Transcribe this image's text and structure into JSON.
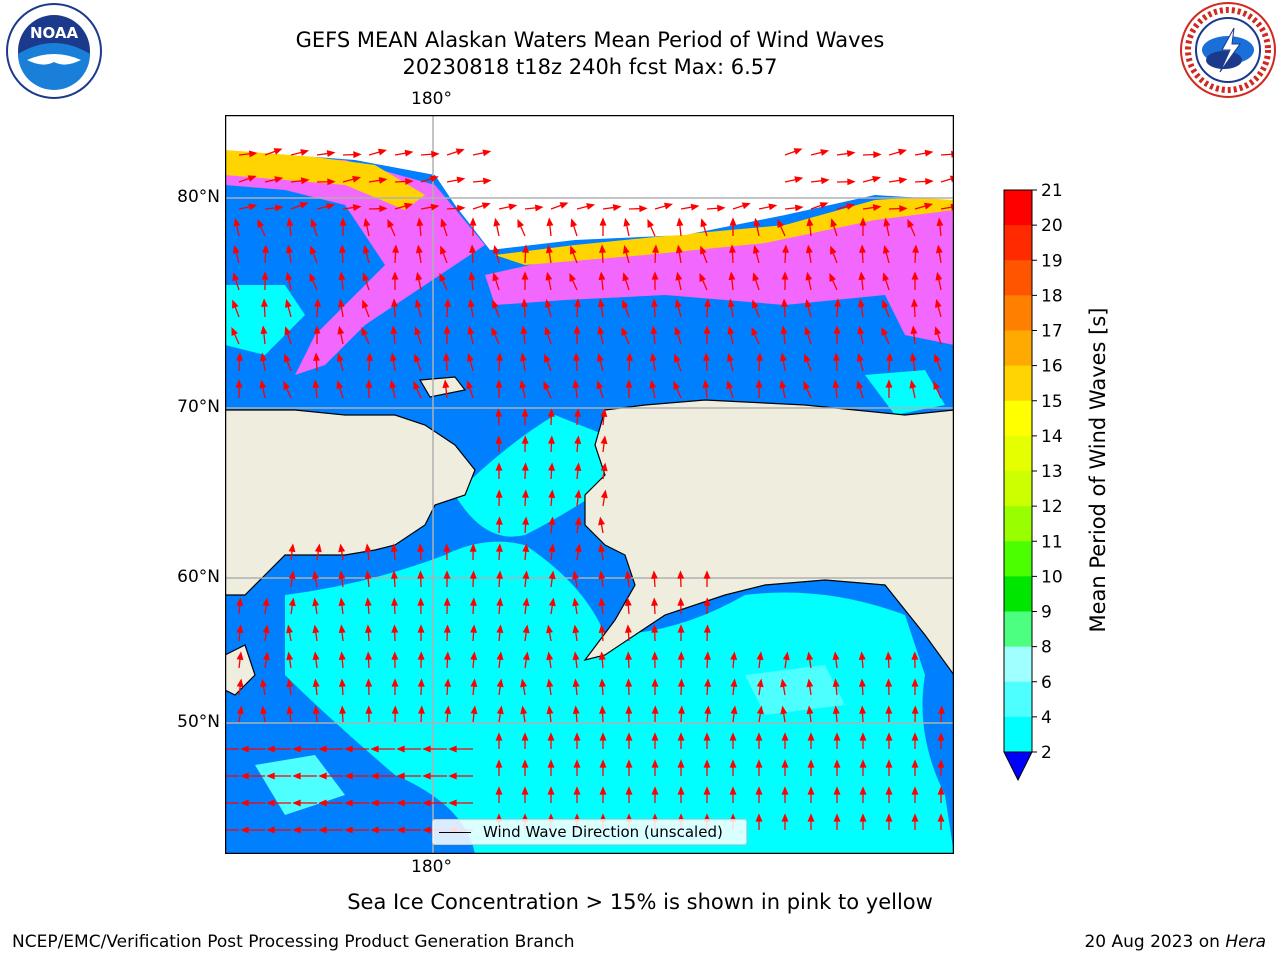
{
  "title_line1": "GEFS MEAN Alaskan Waters Mean Period of Wind Waves",
  "title_line2": "20230818 t18z 240h fcst   Max: 6.57",
  "lon_label_top": "180°",
  "lon_label_bottom": "180°",
  "lat_labels": [
    "80°N",
    "70°N",
    "60°N",
    "50°N"
  ],
  "colorbar": {
    "label": "Mean Period of Wind Waves [s]",
    "ticks": [
      "21",
      "20",
      "19",
      "18",
      "17",
      "16",
      "15",
      "14",
      "13",
      "12",
      "11",
      "10",
      "9",
      "8",
      "6",
      "4",
      "2"
    ],
    "colors": [
      "#ff0000",
      "#ff2a00",
      "#ff5500",
      "#ff8000",
      "#ffaa00",
      "#ffd400",
      "#ffff00",
      "#e6ff00",
      "#ccff00",
      "#99ff00",
      "#4cff00",
      "#00e600",
      "#4cff80",
      "#a0ffff",
      "#4dffff",
      "#00ffff",
      "#0080ff"
    ],
    "underflow_color": "#0000ff"
  },
  "legend": {
    "label": "Wind Wave Direction (unscaled)"
  },
  "footer_note": "Sea Ice Concentration > 15% is shown in pink to yellow",
  "left_footer": "NCEP/EMC/Verification Post Processing Product Generation Branch",
  "right_footer_date": "20 Aug 2023 on ",
  "right_footer_machine": "Hera",
  "logos": {
    "left": "NOAA",
    "right": "NATIONAL WEATHER SERVICE"
  },
  "colors": {
    "land": "#efedde",
    "ocean_low": "#0080ff",
    "ocean_mid": "#00ffff",
    "ice_pink": "#ff66ff",
    "ice_yellow": "#ffd400",
    "arrow": "#ff0000"
  }
}
